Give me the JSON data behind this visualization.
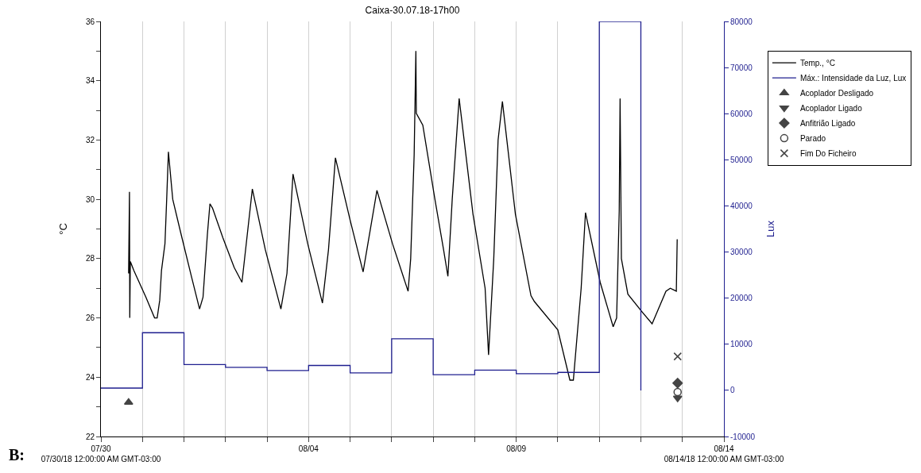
{
  "chart_data": {
    "type": "line",
    "title": "Caixa-30.07.18-17h00",
    "ylabel": "°C",
    "y2label": "Lux",
    "annotations": [
      "B:"
    ],
    "xlim": [
      "--07-30",
      "--08-14"
    ],
    "xticks": [
      {
        "value": "--07-30",
        "label": "07/30\n07/30/18 12:00:00 AM GMT-03:00"
      },
      {
        "value": "--07-31",
        "label": null
      },
      {
        "value": "--08-01",
        "label": null
      },
      {
        "value": "--08-02",
        "label": null
      },
      {
        "value": "--08-03",
        "label": null
      },
      {
        "value": "--08-04",
        "label": "08/04"
      },
      {
        "value": "--08-05",
        "label": null
      },
      {
        "value": "--08-06",
        "label": null
      },
      {
        "value": "--08-07",
        "label": null
      },
      {
        "value": "--08-08",
        "label": null
      },
      {
        "value": "--08-09",
        "label": "08/09"
      },
      {
        "value": "--08-10",
        "label": null
      },
      {
        "value": "--08-11",
        "label": null
      },
      {
        "value": "--08-12",
        "label": null
      },
      {
        "value": "--08-13",
        "label": null
      },
      {
        "value": "--08-14",
        "label": "08/14\n08/14/18 12:00:00 AM GMT-03:00"
      }
    ],
    "ylim": [
      22,
      36
    ],
    "yticks": [
      22,
      {
        "value": 23,
        "label": null
      },
      24,
      {
        "value": 25,
        "label": null
      },
      26,
      {
        "value": 27,
        "label": null
      },
      28,
      {
        "value": 29,
        "label": null
      },
      30,
      {
        "value": 31,
        "label": null
      },
      32,
      {
        "value": 33,
        "label": null
      },
      34,
      {
        "value": 35,
        "label": null
      },
      36
    ],
    "y2lim": [
      -10000,
      80000
    ],
    "y2ticks": [
      -10000,
      0,
      10000,
      20000,
      30000,
      40000,
      50000,
      60000,
      70000,
      80000
    ],
    "grid": "x",
    "legend": "top right",
    "marker": "none",
    "line_style": "solid",
    "series": [
      {
        "name": "Temp., °C",
        "color": "#000000",
        "x": [
          "--07-30T16:00",
          "--07-30T16:30",
          "--07-30T16:40",
          "--07-30T17:00",
          "--07-30T19:00",
          "--07-31T02:00",
          "--07-31T07:00",
          "--07-31T08:30",
          "--07-31T10:00",
          "--07-31T11:00",
          "--07-31T13:00",
          "--07-31T14:00",
          "--07-31T15:00",
          "--07-31T17:30",
          "--07-31T22:00",
          "--08-01T04:30",
          "--08-01T09:00",
          "--08-01T11:00",
          "--08-01T13:30",
          "--08-01T15:00",
          "--08-01T16:30",
          "--08-01T22:30",
          "--08-02T05:00",
          "--08-02T09:30",
          "--08-02T15:30",
          "--08-02T23:00",
          "--08-03T08:00",
          "--08-03T11:30",
          "--08-03T15:00",
          "--08-03T23:30",
          "--08-04T08:00",
          "--08-04T11:30",
          "--08-04T15:30",
          "--08-05T00:00",
          "--08-05T07:30",
          "--08-05T15:30",
          "--08-06T00:30",
          "--08-06T09:30",
          "--08-06T11:00",
          "--08-06T13:00",
          "--08-06T14:00",
          "--08-06T14:15",
          "--08-06T18:00",
          "--08-07T01:00",
          "--08-07T06:00",
          "--08-07T08:30",
          "--08-07T11:00",
          "--08-07T15:00",
          "--08-07T23:00",
          "--08-08T06:00",
          "--08-08T08:00",
          "--08-08T11:00",
          "--08-08T13:30",
          "--08-08T16:00",
          "--08-08T23:30",
          "--08-09T08:30",
          "--08-09T10:30",
          "--08-10T00:00",
          "--08-10T07:00",
          "--08-10T09:00",
          "--08-10T13:30",
          "--08-10T16:00",
          "--08-11T00:30",
          "--08-11T08:00",
          "--08-11T10:00",
          "--08-11T11:30",
          "--08-11T12:00",
          "--08-11T12:45",
          "--08-11T16:30",
          "--08-12T00:45",
          "--08-12T06:30",
          "--08-12T14:30",
          "--08-12T17:00",
          "--08-12T20:30",
          "--08-12T21:00"
        ],
        "values": [
          27.5,
          30.25,
          26.0,
          27.9,
          27.6,
          26.7,
          26.0,
          26.0,
          26.6,
          27.6,
          28.5,
          30.0,
          31.6,
          30.0,
          28.9,
          27.35,
          26.3,
          26.7,
          28.8,
          29.85,
          29.7,
          28.7,
          27.7,
          27.2,
          30.35,
          28.3,
          26.3,
          27.5,
          30.85,
          28.5,
          26.5,
          28.3,
          31.4,
          29.3,
          27.55,
          30.3,
          28.5,
          26.9,
          28.0,
          31.5,
          35.0,
          32.9,
          32.5,
          30.0,
          28.3,
          27.4,
          30.0,
          33.4,
          29.5,
          27.0,
          24.75,
          28.0,
          32.0,
          33.3,
          29.5,
          26.75,
          26.55,
          25.6,
          23.9,
          23.9,
          27.0,
          29.55,
          27.2,
          25.7,
          26.0,
          29.6,
          33.4,
          28.0,
          26.8,
          26.2,
          25.8,
          26.9,
          27.0,
          26.9,
          28.65
        ]
      },
      {
        "name": "Máx.: Intensidade da Luz, Lux",
        "color": "#1f1f8f",
        "type": "step",
        "axis": "y2",
        "x": [
          "--07-30",
          "--07-31",
          "--08-01",
          "--08-02",
          "--08-03",
          "--08-04",
          "--08-05",
          "--08-06",
          "--08-07",
          "--08-08",
          "--08-09",
          "--08-10",
          "--08-11",
          "--08-12"
        ],
        "values": [
          500,
          12500,
          5600,
          5000,
          4300,
          5400,
          3800,
          11200,
          3400,
          4400,
          3600,
          3900,
          80000,
          0
        ]
      },
      {
        "name": "Acoplador Desligado",
        "color": "#444444",
        "type": "scatter",
        "marker": "triangle",
        "x": [
          "--07-30T16:00"
        ],
        "values": [
          23.15
        ]
      },
      {
        "name": "Acoplador Ligado",
        "color": "#444444",
        "type": "scatter",
        "marker": "triangle-down",
        "x": [
          "--08-12T21:15"
        ],
        "values": [
          23.3
        ]
      },
      {
        "name": "Anfitrião Ligado",
        "color": "#444444",
        "type": "scatter",
        "marker": "diamond",
        "x": [
          "--08-12T21:15"
        ],
        "values": [
          23.8
        ]
      },
      {
        "name": "Parado",
        "color": "#444444",
        "type": "scatter",
        "marker": "circle-open",
        "x": [
          "--08-12T21:15"
        ],
        "values": [
          23.5
        ]
      },
      {
        "name": "Fim Do Ficheiro",
        "color": "#444444",
        "type": "scatter",
        "marker": "cross",
        "x": [
          "--08-12T21:15"
        ],
        "values": [
          24.7
        ]
      }
    ]
  }
}
